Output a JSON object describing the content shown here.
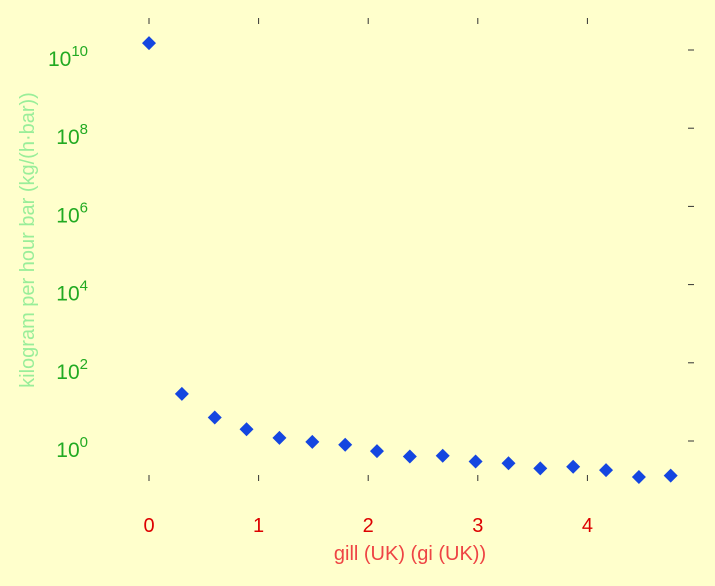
{
  "colors": {
    "background": "#ffffcc",
    "marker": "#1446e0",
    "y_tick_label": "#22aa22",
    "y_axis_label": "#99ee99",
    "x_tick_label": "#dd0000",
    "x_axis_label": "#ee4444",
    "tick_mark": "#333333"
  },
  "chart_data": {
    "type": "scatter",
    "title": "",
    "xlabel": "gill (UK) (gi (UK))",
    "ylabel": "kilogram per hour bar (kg/(h·bar))",
    "marker": "diamond",
    "grid": false,
    "y_scale": "log",
    "xlim": [
      -0.1,
      4.85
    ],
    "ylim_log10": [
      -1.1,
      10.3
    ],
    "x_ticks": [
      0,
      1,
      2,
      3,
      4
    ],
    "x_tick_labels": [
      "0",
      "1",
      "2",
      "3",
      "4"
    ],
    "y_ticks_log10": [
      0,
      2,
      4,
      6,
      8,
      10
    ],
    "y_tick_labels": [
      {
        "base": "10",
        "exp": "0"
      },
      {
        "base": "10",
        "exp": "2"
      },
      {
        "base": "10",
        "exp": "4"
      },
      {
        "base": "10",
        "exp": "6"
      },
      {
        "base": "10",
        "exp": "8"
      },
      {
        "base": "10",
        "exp": "10"
      }
    ],
    "points": [
      {
        "x": 0.0,
        "y": 15000000000
      },
      {
        "x": 0.3,
        "y": 16
      },
      {
        "x": 0.6,
        "y": 4
      },
      {
        "x": 0.89,
        "y": 2
      },
      {
        "x": 1.19,
        "y": 1.2
      },
      {
        "x": 1.49,
        "y": 0.95
      },
      {
        "x": 1.79,
        "y": 0.8
      },
      {
        "x": 2.08,
        "y": 0.55
      },
      {
        "x": 2.38,
        "y": 0.4
      },
      {
        "x": 2.68,
        "y": 0.42
      },
      {
        "x": 2.98,
        "y": 0.3
      },
      {
        "x": 3.28,
        "y": 0.27
      },
      {
        "x": 3.57,
        "y": 0.2
      },
      {
        "x": 3.87,
        "y": 0.22
      },
      {
        "x": 4.17,
        "y": 0.18
      },
      {
        "x": 4.47,
        "y": 0.12
      },
      {
        "x": 4.76,
        "y": 0.13
      }
    ]
  }
}
